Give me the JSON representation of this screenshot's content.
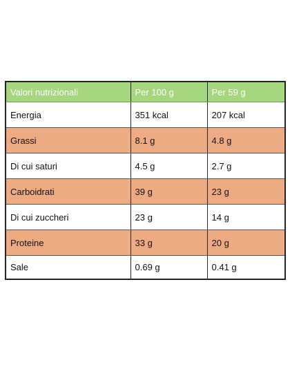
{
  "colors": {
    "header_bg": "#a6d77f",
    "row_highlight": "#eeaa82",
    "row_plain": "#ffffff"
  },
  "table": {
    "headers": [
      "Valori nutrizionali",
      "Per 100 g",
      "Per 59 g"
    ],
    "rows": [
      {
        "label": "Energia",
        "per_100g": "351 kcal",
        "per_59g": "207 kcal",
        "highlight": false
      },
      {
        "label": "Grassi",
        "per_100g": "8.1 g",
        "per_59g": "4.8 g",
        "highlight": true
      },
      {
        "label": "Di cui saturi",
        "per_100g": "4.5 g",
        "per_59g": "2.7 g",
        "highlight": false
      },
      {
        "label": "Carboidrati",
        "per_100g": "39 g",
        "per_59g": "23 g",
        "highlight": true
      },
      {
        "label": "Di cui zuccheri",
        "per_100g": "23 g",
        "per_59g": "14 g",
        "highlight": false
      },
      {
        "label": "Proteine",
        "per_100g": "33 g",
        "per_59g": "20 g",
        "highlight": true
      },
      {
        "label": "Sale",
        "per_100g": "0.69 g",
        "per_59g": "0.41 g",
        "highlight": false
      }
    ]
  }
}
